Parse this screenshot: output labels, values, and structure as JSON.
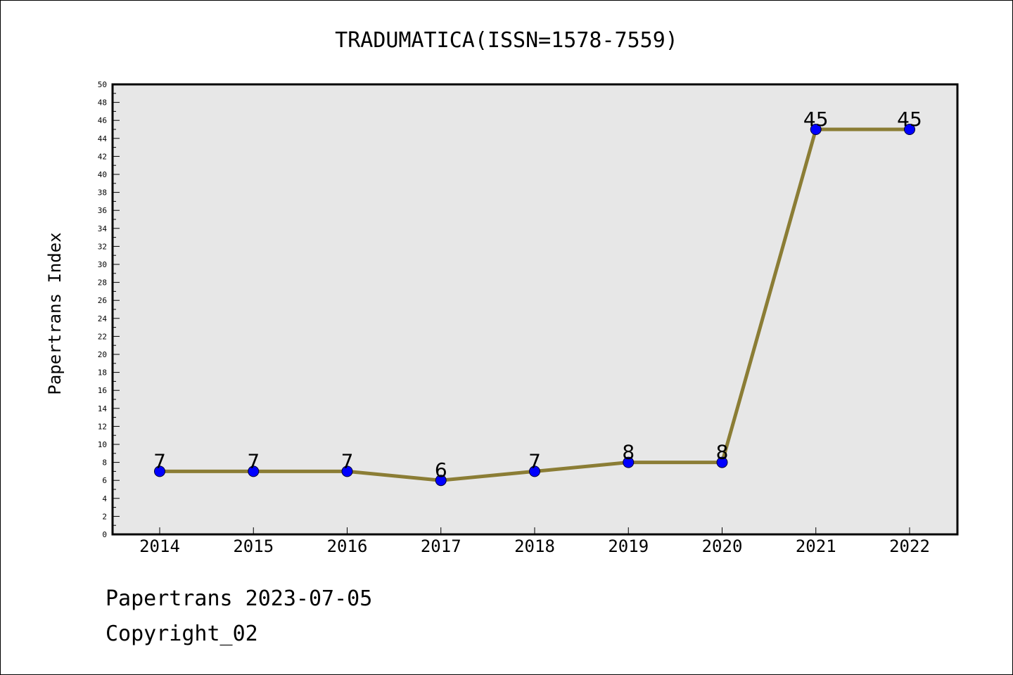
{
  "chart_data": {
    "type": "line",
    "title": "TRADUMATICA(ISSN=1578-7559)",
    "xlabel": "",
    "ylabel": "Papertrans Index",
    "categories": [
      "2014",
      "2015",
      "2016",
      "2017",
      "2018",
      "2019",
      "2020",
      "2021",
      "2022"
    ],
    "series": [
      {
        "values": [
          7,
          7,
          7,
          6,
          7,
          8,
          8,
          45,
          45
        ]
      }
    ],
    "data_labels": [
      "7",
      "7",
      "7",
      "6",
      "7",
      "8",
      "8",
      "45",
      "45"
    ],
    "ylim": [
      0,
      50
    ],
    "y_ticks": [
      "0",
      "2",
      "4",
      "6",
      "8",
      "10",
      "12",
      "14",
      "16",
      "18",
      "20",
      "22",
      "24",
      "26",
      "28",
      "30",
      "32",
      "34",
      "36",
      "38",
      "40",
      "42",
      "44",
      "46",
      "48",
      "50"
    ],
    "grid": false,
    "legend": "none",
    "colors": {
      "plot_background": "#e7e7e7",
      "line": "#8b7d35",
      "marker_fill": "#0000ff",
      "marker_edge": "#000033"
    }
  },
  "footer": {
    "source_line": "Papertrans 2023-07-05",
    "copyright_line": "Copyright_02"
  }
}
